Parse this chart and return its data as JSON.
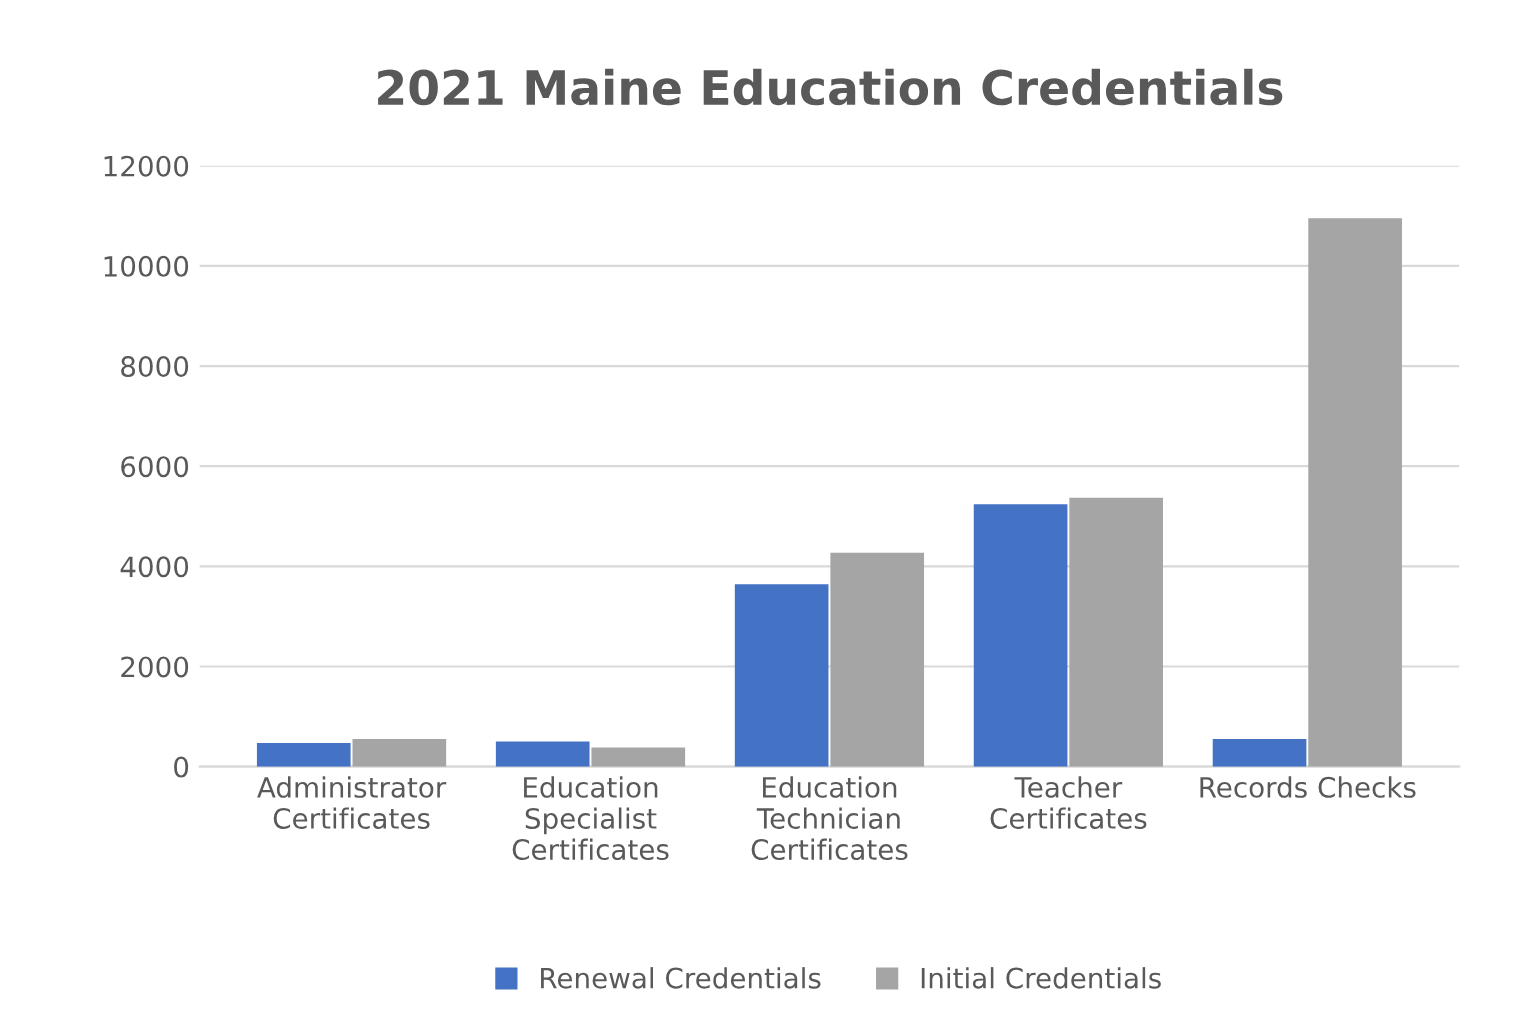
{
  "chart_data": {
    "type": "bar",
    "title": "2021 Maine Education Credentials",
    "categories": [
      "Administrator\nCertificates",
      "Education\nSpecialist\nCertificates",
      "Education\nTechnician\nCertificates",
      "Teacher\nCertificates",
      "Records Checks"
    ],
    "series": [
      {
        "name": "Renewal Credentials",
        "color": "#4472c4",
        "values": [
          470,
          500,
          3640,
          5240,
          550
        ]
      },
      {
        "name": "Initial Credentials",
        "color": "#a5a5a5",
        "values": [
          550,
          380,
          4270,
          5370,
          10950
        ]
      }
    ],
    "ylim": [
      0,
      12000
    ],
    "yticks": [
      0,
      2000,
      4000,
      6000,
      8000,
      10000,
      12000
    ],
    "grid": "y",
    "legend": "bottom"
  }
}
